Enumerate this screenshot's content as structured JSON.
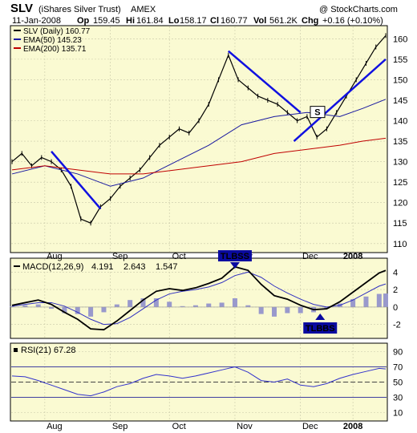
{
  "header": {
    "symbol": "SLV",
    "name": "(iShares Silver Trust)",
    "exchange": "AMEX",
    "copyright": "@ StockCharts.com",
    "date": "11-Jan-2008",
    "op_label": "Op",
    "op": "159.45",
    "hi_label": "Hi",
    "hi": "161.84",
    "lo_label": "Lo",
    "lo": "158.17",
    "cl_label": "Cl",
    "cl": "160.77",
    "vol_label": "Vol",
    "vol": "561.2K",
    "chg_label": "Chg",
    "chg": "+0.16 (+0.10%)"
  },
  "colors": {
    "panel_bg": "#fafad2",
    "price": "#000000",
    "ema50": "#1a1aa0",
    "ema200": "#c00000",
    "trendline": "#1010e0",
    "macd": "#000000",
    "signal": "#3030c0",
    "histogram": "#9999cc",
    "rsi": "#3333cc",
    "annotation_bg": "#0a0aa0"
  },
  "chart_data": [
    {
      "type": "line",
      "legend": [
        {
          "label": "SLV (Daily) 160.77",
          "color": "#000000"
        },
        {
          "label": "EMA(50) 145.23",
          "color": "#1a1aa0"
        },
        {
          "label": "EMA(200) 135.71",
          "color": "#c00000"
        }
      ],
      "x_ticks": [
        "Aug",
        "Sep",
        "Oct",
        "Nov",
        "Dec",
        "2008"
      ],
      "y_ticks": [
        110,
        115,
        120,
        125,
        130,
        135,
        140,
        145,
        150,
        155,
        160
      ],
      "ylim": [
        108,
        163
      ],
      "grid": true,
      "series": [
        {
          "name": "SLV (Daily)",
          "x": [
            0,
            3,
            6,
            9,
            12,
            15,
            18,
            21,
            24,
            27,
            30,
            33,
            36,
            39,
            42,
            45,
            48,
            51,
            54,
            57,
            60,
            63,
            66,
            69,
            72,
            75,
            78,
            81,
            84,
            87,
            90,
            93,
            96,
            99,
            102,
            105,
            108,
            111,
            114
          ],
          "values": [
            130,
            132,
            129,
            131,
            130,
            128,
            124,
            116,
            115,
            119,
            121,
            124,
            126,
            128,
            131,
            134,
            136,
            138,
            137,
            140,
            144,
            150,
            156,
            150,
            148,
            146,
            145,
            144,
            142,
            140,
            141,
            136,
            138,
            142,
            146,
            150,
            154,
            158,
            160.77
          ]
        },
        {
          "name": "EMA(50)",
          "x": [
            0,
            10,
            20,
            30,
            40,
            50,
            60,
            70,
            80,
            90,
            100,
            107,
            114
          ],
          "values": [
            127,
            129,
            127,
            124,
            126,
            130,
            134,
            139,
            141,
            142,
            141,
            143,
            145.23
          ]
        },
        {
          "name": "EMA(200)",
          "x": [
            0,
            10,
            20,
            30,
            40,
            50,
            60,
            70,
            80,
            90,
            100,
            107,
            114
          ],
          "values": [
            128,
            129,
            128,
            127,
            127,
            128,
            129,
            130,
            132,
            133,
            134,
            135,
            135.71
          ]
        }
      ],
      "annotations": [
        {
          "text": "S"
        }
      ]
    },
    {
      "type": "line",
      "legend": [
        {
          "label": "MACD(12,26,9)",
          "color": "#000000"
        },
        {
          "label": "4.191",
          "color": "#000000"
        },
        {
          "label": "2.643",
          "color": "#3030c0"
        },
        {
          "label": "1.547",
          "color": "#9999cc"
        }
      ],
      "y_ticks": [
        -2,
        0,
        2,
        4
      ],
      "ylim": [
        -3.5,
        5.5
      ],
      "series": [
        {
          "name": "MACD",
          "x": [
            0,
            4,
            8,
            12,
            16,
            20,
            24,
            28,
            32,
            36,
            40,
            44,
            48,
            52,
            56,
            60,
            64,
            68,
            72,
            76,
            80,
            84,
            88,
            92,
            96,
            100,
            104,
            108,
            112,
            114
          ],
          "values": [
            0.2,
            0.5,
            0.8,
            0.3,
            -0.6,
            -1.4,
            -2.5,
            -2.6,
            -1.6,
            -0.4,
            0.8,
            1.8,
            2.1,
            1.9,
            2.2,
            2.7,
            3.3,
            4.6,
            4.2,
            2.6,
            1.3,
            0.9,
            0.2,
            -0.3,
            -0.2,
            0.6,
            1.7,
            2.8,
            3.9,
            4.191
          ]
        },
        {
          "name": "Signal",
          "x": [
            0,
            4,
            8,
            12,
            16,
            20,
            24,
            28,
            32,
            36,
            40,
            44,
            48,
            52,
            56,
            60,
            64,
            68,
            72,
            76,
            80,
            84,
            88,
            92,
            96,
            100,
            104,
            108,
            112,
            114
          ],
          "values": [
            0.1,
            0.3,
            0.5,
            0.5,
            0.1,
            -0.6,
            -1.4,
            -2.0,
            -1.9,
            -1.2,
            -0.2,
            0.8,
            1.5,
            1.8,
            2.0,
            2.3,
            2.8,
            3.6,
            4.0,
            3.4,
            2.4,
            1.6,
            0.9,
            0.3,
            0.0,
            0.2,
            0.8,
            1.6,
            2.4,
            2.643
          ]
        }
      ],
      "annotations": [
        {
          "text": "TLBSS"
        },
        {
          "text": "TLBBS"
        }
      ]
    },
    {
      "type": "line",
      "legend": [
        {
          "label": "RSI(21) 67.28",
          "color": "#3333cc"
        }
      ],
      "x_ticks": [
        "Aug",
        "Sep",
        "Oct",
        "Nov",
        "Dec",
        "2008"
      ],
      "y_ticks": [
        10,
        30,
        50,
        70,
        90
      ],
      "ylim": [
        0,
        100
      ],
      "reference_lines": [
        30,
        50,
        70
      ],
      "series": [
        {
          "name": "RSI(21)",
          "x": [
            0,
            4,
            8,
            12,
            16,
            20,
            24,
            28,
            32,
            36,
            40,
            44,
            48,
            52,
            56,
            60,
            64,
            68,
            72,
            76,
            80,
            84,
            88,
            92,
            96,
            100,
            104,
            108,
            112,
            114
          ],
          "values": [
            58,
            57,
            52,
            46,
            40,
            34,
            32,
            37,
            44,
            48,
            55,
            60,
            58,
            55,
            58,
            62,
            66,
            70,
            63,
            52,
            50,
            54,
            46,
            44,
            48,
            55,
            60,
            64,
            68,
            67.28
          ]
        }
      ]
    }
  ]
}
